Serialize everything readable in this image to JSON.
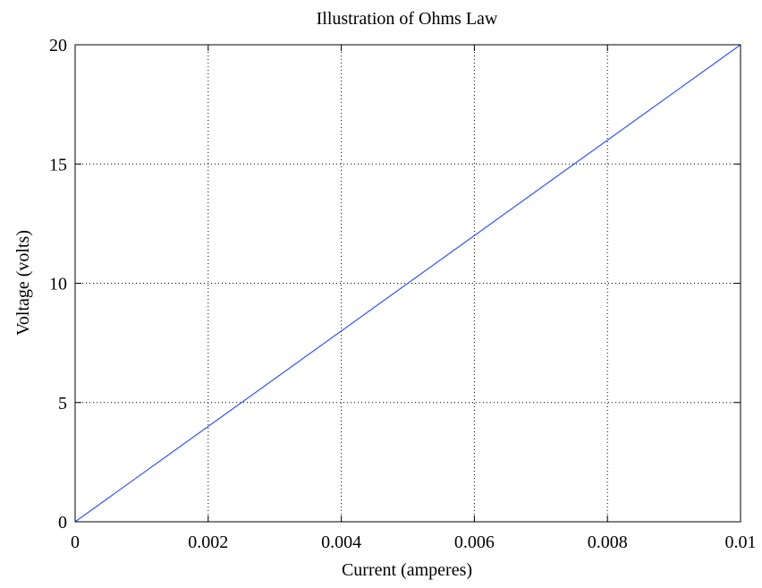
{
  "chart_data": {
    "type": "line",
    "title": "Illustration of Ohms Law",
    "xlabel": "Current (amperes)",
    "ylabel": "Voltage (volts)",
    "xlim": [
      0,
      0.01
    ],
    "ylim": [
      0,
      20
    ],
    "x_ticks": [
      0,
      0.002,
      0.004,
      0.006,
      0.008,
      0.01
    ],
    "x_tick_labels": [
      "0",
      "0.002",
      "0.004",
      "0.006",
      "0.008",
      "0.01"
    ],
    "y_ticks": [
      0,
      5,
      10,
      15,
      20
    ],
    "y_tick_labels": [
      "0",
      "5",
      "10",
      "15",
      "20"
    ],
    "grid": true,
    "grid_style": "dotted",
    "series": [
      {
        "color": "#3355ff",
        "x": [
          0,
          0.01
        ],
        "y": [
          0,
          20
        ]
      }
    ]
  }
}
